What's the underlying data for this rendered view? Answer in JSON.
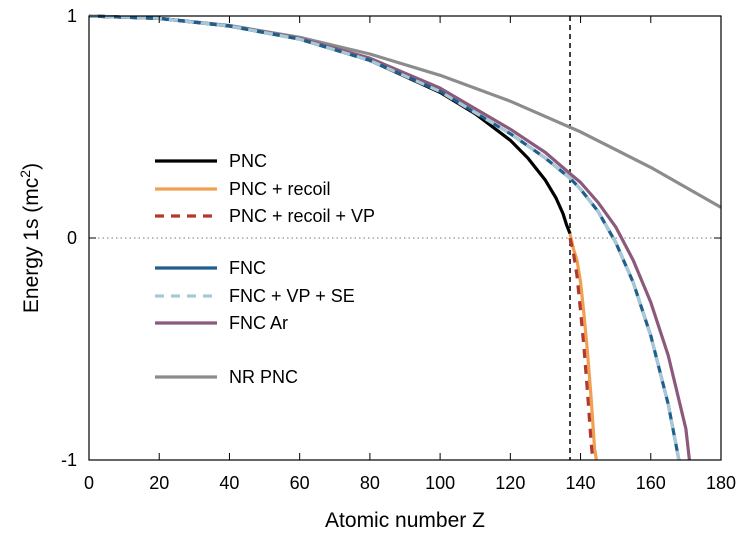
{
  "chart_data": {
    "type": "line",
    "xlabel": "Atomic number Z",
    "ylabel_main": "Energy 1s (mc",
    "ylabel_sup": "2",
    "ylabel_tail": ")",
    "xlim": [
      0,
      180
    ],
    "ylim": [
      -1,
      1
    ],
    "x_ticks": [
      0,
      20,
      40,
      60,
      80,
      100,
      120,
      140,
      160,
      180
    ],
    "y_ticks": [
      -1,
      0,
      1
    ],
    "reference_lines": {
      "y_zero": 0,
      "x_critical": 137
    },
    "legend_position": "left-middle",
    "series": [
      {
        "name": "PNC",
        "color": "#000000",
        "dash": "solid",
        "x": [
          0,
          20,
          40,
          60,
          80,
          100,
          110,
          120,
          125,
          130,
          133,
          135,
          136,
          137
        ],
        "y": [
          1.0,
          0.989,
          0.955,
          0.896,
          0.8,
          0.656,
          0.56,
          0.44,
          0.36,
          0.26,
          0.18,
          0.11,
          0.06,
          0.02
        ]
      },
      {
        "name": "PNC + recoil",
        "color": "#f0a050",
        "dash": "solid",
        "x": [
          137,
          138,
          139,
          140,
          141,
          142,
          143,
          144,
          144.5
        ],
        "y": [
          0.02,
          -0.05,
          -0.1,
          -0.2,
          -0.35,
          -0.52,
          -0.72,
          -0.95,
          -1.0
        ]
      },
      {
        "name": "PNC + recoil + VP",
        "color": "#b03a2e",
        "dash": "dashed",
        "x": [
          137,
          138,
          139,
          140,
          141,
          142,
          143,
          143.5
        ],
        "y": [
          0.0,
          -0.07,
          -0.17,
          -0.33,
          -0.5,
          -0.7,
          -0.92,
          -1.0
        ]
      },
      {
        "name": "FNC",
        "color": "#1f5f8b",
        "dash": "solid",
        "x": [
          0,
          20,
          40,
          60,
          80,
          100,
          120,
          130,
          137,
          140,
          145,
          150,
          155,
          160,
          165,
          168
        ],
        "y": [
          1.0,
          0.989,
          0.955,
          0.896,
          0.8,
          0.66,
          0.47,
          0.36,
          0.27,
          0.22,
          0.12,
          -0.02,
          -0.2,
          -0.44,
          -0.75,
          -1.0
        ]
      },
      {
        "name": "FNC + VP + SE",
        "color": "#a8c8d8",
        "dash": "dashed",
        "x": [
          0,
          20,
          40,
          60,
          80,
          100,
          120,
          130,
          137,
          140,
          145,
          150,
          155,
          160,
          165,
          168
        ],
        "y": [
          1.0,
          0.989,
          0.955,
          0.896,
          0.8,
          0.66,
          0.47,
          0.36,
          0.27,
          0.22,
          0.12,
          -0.02,
          -0.2,
          -0.44,
          -0.75,
          -1.0
        ]
      },
      {
        "name": "FNC Ar",
        "color": "#8b5a7a",
        "dash": "solid",
        "x": [
          0,
          20,
          40,
          60,
          80,
          100,
          120,
          130,
          137,
          140,
          145,
          150,
          155,
          160,
          165,
          170,
          171
        ],
        "y": [
          1.0,
          0.989,
          0.956,
          0.899,
          0.81,
          0.675,
          0.49,
          0.385,
          0.29,
          0.25,
          0.16,
          0.05,
          -0.1,
          -0.29,
          -0.53,
          -0.86,
          -1.0
        ]
      },
      {
        "name": "NR PNC",
        "color": "#8c8c8c",
        "dash": "solid",
        "x": [
          0,
          20,
          40,
          60,
          80,
          100,
          120,
          140,
          160,
          180
        ],
        "y": [
          1.0,
          0.989,
          0.957,
          0.904,
          0.829,
          0.733,
          0.616,
          0.478,
          0.318,
          0.138
        ]
      }
    ],
    "legend_groups": [
      [
        0,
        1,
        2
      ],
      [
        3,
        4,
        5
      ],
      [
        6
      ]
    ]
  }
}
